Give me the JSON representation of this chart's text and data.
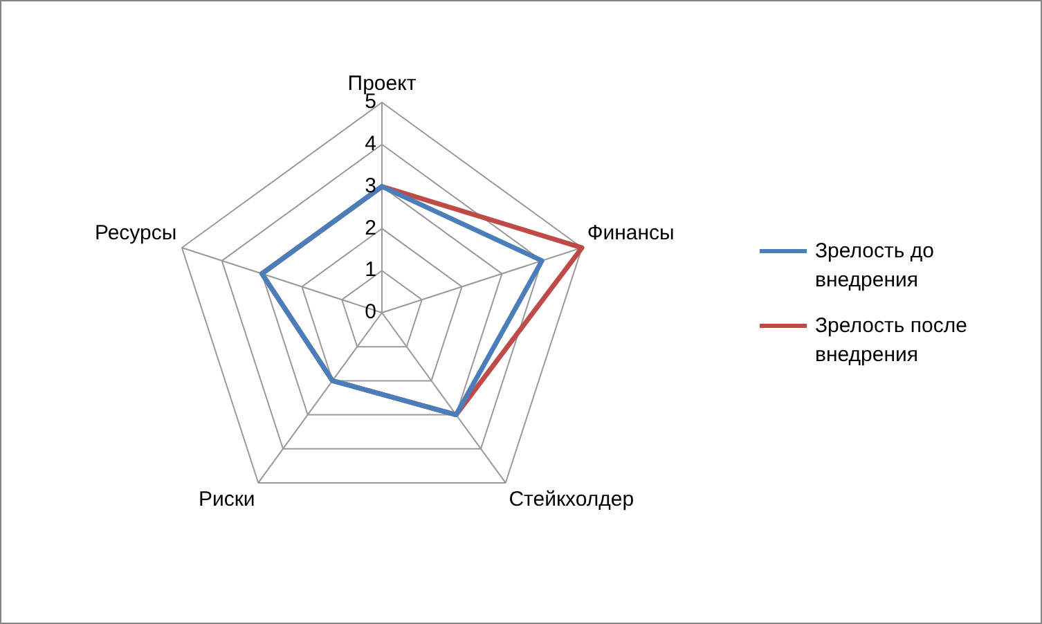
{
  "chart_data": {
    "type": "radar",
    "categories": [
      "Проект",
      "Финансы",
      "Стейкхолдер",
      "Риски",
      "Ресурсы"
    ],
    "series": [
      {
        "name": "Зрелость до внедрения",
        "color": "#4a7ebb",
        "values": [
          3,
          4,
          3,
          2,
          3
        ]
      },
      {
        "name": "Зрелость после внедрения",
        "color": "#be4b48",
        "values": [
          3,
          5,
          3,
          2,
          3
        ]
      }
    ],
    "ylim": [
      0,
      5
    ],
    "yticks": [
      0,
      1,
      2,
      3,
      4,
      5
    ],
    "grid": true,
    "legend": "right",
    "marker": "none"
  }
}
